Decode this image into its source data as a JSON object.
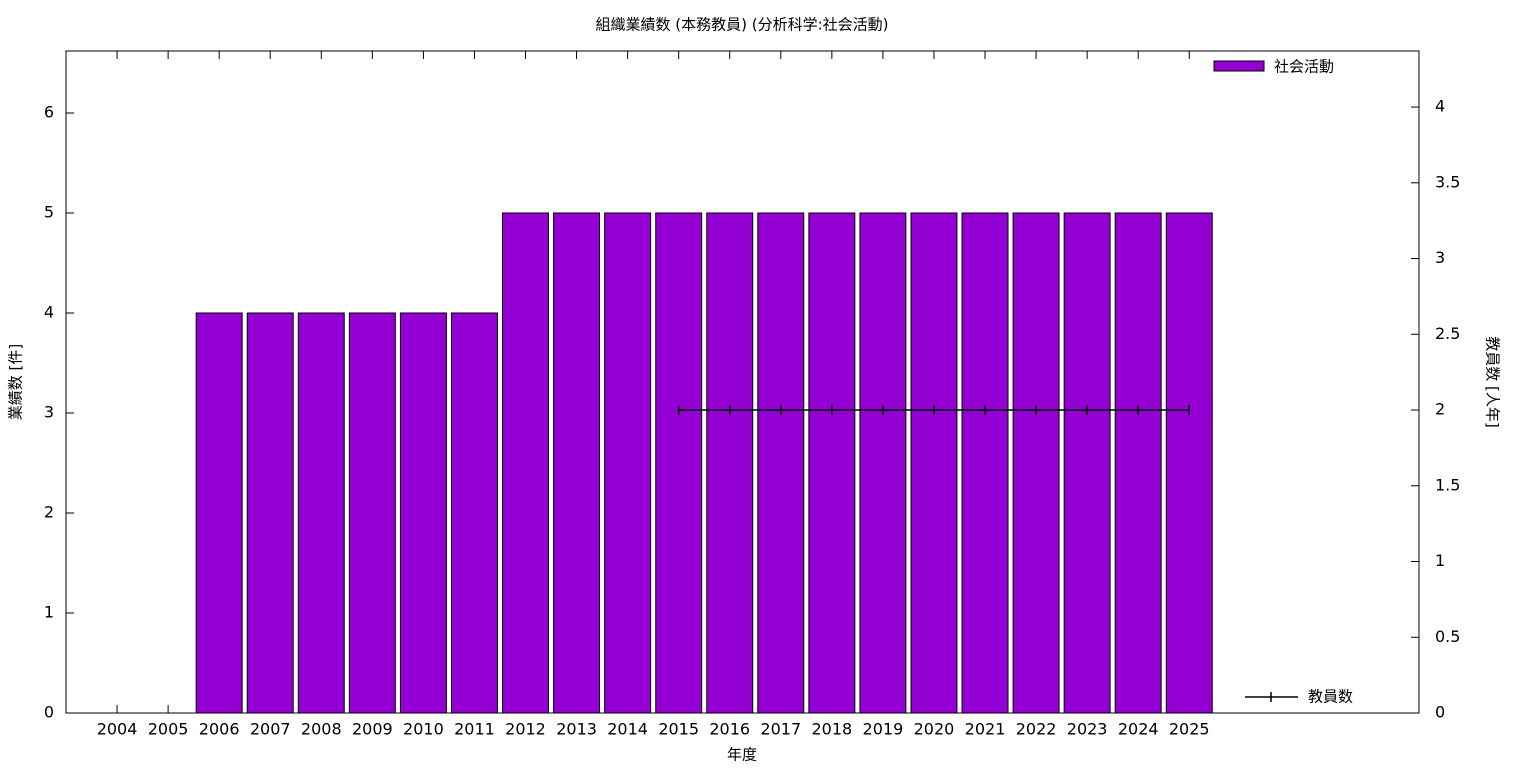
{
  "chart_data": {
    "type": "bar",
    "title": "組織業績数 (本務教員) (分析科学:社会活動)",
    "x_label": "年度",
    "y_label": "業績数 [件]",
    "y2_label": "教員数 [人年]",
    "x": [
      2004,
      2005,
      2006,
      2007,
      2008,
      2009,
      2010,
      2011,
      2012,
      2013,
      2014,
      2015,
      2016,
      2017,
      2018,
      2019,
      2020,
      2021,
      2022,
      2023,
      2024,
      2025
    ],
    "xlim": [
      2003,
      2029.5
    ],
    "xticks": [
      2004,
      2005,
      2006,
      2007,
      2008,
      2009,
      2010,
      2011,
      2012,
      2013,
      2014,
      2015,
      2016,
      2017,
      2018,
      2019,
      2020,
      2021,
      2022,
      2023,
      2024,
      2025
    ],
    "ylim": [
      0,
      6.62
    ],
    "yticks": [
      0,
      1,
      2,
      3,
      4,
      5,
      6
    ],
    "y2lim": [
      0,
      4.37
    ],
    "y2ticks": [
      0,
      0.5,
      1,
      1.5,
      2,
      2.5,
      3,
      3.5,
      4
    ],
    "series": [
      {
        "name": "社会活動",
        "type": "bar",
        "color": "#9400d3",
        "values": [
          0,
          0,
          4,
          4,
          4,
          4,
          4,
          4,
          5,
          5,
          5,
          5,
          5,
          5,
          5,
          5,
          5,
          5,
          5,
          5,
          5,
          5
        ]
      },
      {
        "name": "教員数",
        "type": "line",
        "axis": "y2",
        "color": "#000000",
        "values": [
          null,
          null,
          null,
          null,
          null,
          null,
          null,
          null,
          null,
          null,
          null,
          2,
          2,
          2,
          2,
          2,
          2,
          2,
          2,
          2,
          2,
          2
        ]
      }
    ],
    "legend": "upper-right"
  }
}
